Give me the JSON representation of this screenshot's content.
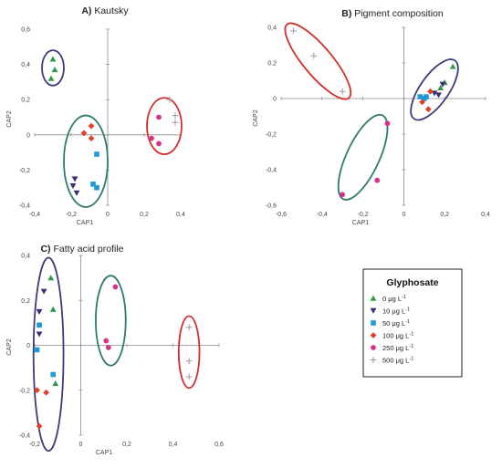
{
  "chart_data": [
    {
      "type": "scatter",
      "title": "A) Kautsky",
      "xlabel": "CAP1",
      "ylabel": "CAP2",
      "xlim": [
        -0.4,
        0.4
      ],
      "ylim": [
        -0.4,
        0.6
      ],
      "xticks": [
        "-0,4",
        "-0,2",
        "0",
        "0,2",
        "0,4"
      ],
      "yticks": [
        "-0,4",
        "-0,2",
        "0",
        "0,2",
        "0,4",
        "0,6"
      ],
      "series": [
        {
          "name": "0 μg L-1",
          "points": [
            [
              -0.3,
              0.43
            ],
            [
              -0.29,
              0.37
            ],
            [
              -0.31,
              0.32
            ]
          ]
        },
        {
          "name": "10 μg L-1",
          "points": [
            [
              -0.18,
              -0.25
            ],
            [
              -0.19,
              -0.29
            ],
            [
              -0.17,
              -0.33
            ]
          ]
        },
        {
          "name": "50 μg L-1",
          "points": [
            [
              -0.06,
              -0.11
            ],
            [
              -0.08,
              -0.28
            ],
            [
              -0.06,
              -0.3
            ]
          ]
        },
        {
          "name": "100 μg L-1",
          "points": [
            [
              -0.13,
              0.01
            ],
            [
              -0.09,
              0.05
            ],
            [
              -0.09,
              -0.02
            ]
          ]
        },
        {
          "name": "250 μg L-1",
          "points": [
            [
              0.28,
              0.1
            ],
            [
              0.24,
              -0.02
            ],
            [
              0.28,
              -0.05
            ]
          ]
        },
        {
          "name": "500 μg L-1",
          "points": [
            [
              0.34,
              0.2
            ],
            [
              0.37,
              0.11
            ],
            [
              0.37,
              0.07
            ]
          ]
        }
      ],
      "clusters": [
        {
          "cx": -0.3,
          "cy": 0.38,
          "rx": 0.06,
          "ry": 0.1,
          "angle": 0,
          "color": "#3b3b7a"
        },
        {
          "cx": -0.12,
          "cy": -0.15,
          "rx": 0.12,
          "ry": 0.26,
          "angle": 0,
          "color": "#2f7a6e"
        },
        {
          "cx": 0.31,
          "cy": 0.05,
          "rx": 0.095,
          "ry": 0.16,
          "angle": 0,
          "color": "#d0312d"
        }
      ]
    },
    {
      "type": "scatter",
      "title": "B) Pigment composition",
      "xlabel": "CAP1",
      "ylabel": "CAP2",
      "xlim": [
        -0.6,
        0.4
      ],
      "ylim": [
        -0.6,
        0.4
      ],
      "xticks": [
        "-0,6",
        "-0,4",
        "-0,2",
        "0",
        "0,2",
        "0,4"
      ],
      "yticks": [
        "-0,6",
        "-0,4",
        "-0,2",
        "0",
        "0,2",
        "0,4"
      ],
      "series": [
        {
          "name": "0 μg L-1",
          "points": [
            [
              0.24,
              0.18
            ],
            [
              0.2,
              0.09
            ],
            [
              0.18,
              0.06
            ]
          ]
        },
        {
          "name": "10 μg L-1",
          "points": [
            [
              0.19,
              0.08
            ],
            [
              0.15,
              0.03
            ],
            [
              0.17,
              0.02
            ]
          ]
        },
        {
          "name": "50 μg L-1",
          "points": [
            [
              0.08,
              0.01
            ],
            [
              0.11,
              0.01
            ],
            [
              0.1,
              0.0
            ]
          ]
        },
        {
          "name": "100 μg L-1",
          "points": [
            [
              0.13,
              0.04
            ],
            [
              0.09,
              -0.02
            ],
            [
              0.12,
              -0.06
            ]
          ]
        },
        {
          "name": "250 μg L-1",
          "points": [
            [
              -0.08,
              -0.14
            ],
            [
              -0.13,
              -0.46
            ],
            [
              -0.3,
              -0.54
            ]
          ]
        },
        {
          "name": "500 μg L-1",
          "points": [
            [
              -0.54,
              0.38
            ],
            [
              -0.44,
              0.24
            ],
            [
              -0.3,
              0.04
            ]
          ]
        }
      ],
      "clusters": [
        {
          "cx": 0.15,
          "cy": 0.05,
          "rx": 0.07,
          "ry": 0.2,
          "angle": 35,
          "color": "#3b3b7a"
        },
        {
          "cx": -0.2,
          "cy": -0.33,
          "rx": 0.08,
          "ry": 0.26,
          "angle": 25,
          "color": "#2f7a6e"
        },
        {
          "cx": -0.42,
          "cy": 0.21,
          "rx": 0.07,
          "ry": 0.27,
          "angle": -40,
          "color": "#d0312d"
        }
      ]
    },
    {
      "type": "scatter",
      "title": "C) Fatty acid profile",
      "xlabel": "CAP1",
      "ylabel": "CAP2",
      "xlim": [
        -0.2,
        0.6
      ],
      "ylim": [
        -0.4,
        0.4
      ],
      "xticks": [
        "-0,2",
        "0",
        "0,2",
        "0,4",
        "0,6"
      ],
      "yticks": [
        "-0,4",
        "-0,2",
        "0",
        "0,2",
        "0,4"
      ],
      "series": [
        {
          "name": "0 μg L-1",
          "points": [
            [
              -0.13,
              0.3
            ],
            [
              -0.12,
              0.16
            ],
            [
              -0.11,
              -0.17
            ]
          ]
        },
        {
          "name": "10 μg L-1",
          "points": [
            [
              -0.16,
              0.24
            ],
            [
              -0.18,
              0.15
            ],
            [
              -0.18,
              0.05
            ]
          ]
        },
        {
          "name": "50 μg L-1",
          "points": [
            [
              -0.18,
              0.09
            ],
            [
              -0.19,
              -0.02
            ],
            [
              -0.12,
              -0.13
            ]
          ]
        },
        {
          "name": "100 μg L-1",
          "points": [
            [
              -0.19,
              -0.2
            ],
            [
              -0.15,
              -0.21
            ],
            [
              -0.18,
              -0.36
            ]
          ]
        },
        {
          "name": "250 μg L-1",
          "points": [
            [
              0.15,
              0.26
            ],
            [
              0.11,
              0.02
            ],
            [
              0.12,
              -0.01
            ]
          ]
        },
        {
          "name": "500 μg L-1",
          "points": [
            [
              0.47,
              0.08
            ],
            [
              0.47,
              -0.07
            ],
            [
              0.47,
              -0.14
            ]
          ]
        }
      ],
      "clusters": [
        {
          "cx": -0.14,
          "cy": -0.04,
          "rx": 0.065,
          "ry": 0.43,
          "angle": 0,
          "color": "#3b3b7a"
        },
        {
          "cx": 0.13,
          "cy": 0.11,
          "rx": 0.065,
          "ry": 0.2,
          "angle": 0,
          "color": "#2f7a6e"
        },
        {
          "cx": 0.47,
          "cy": -0.03,
          "rx": 0.045,
          "ry": 0.16,
          "angle": 0,
          "color": "#d0312d"
        }
      ]
    }
  ],
  "legend": {
    "title": "Glyphosate",
    "unit": "μg L",
    "exponent": "-1",
    "entries": [
      {
        "value": "0",
        "marker": "triangle-up-icon",
        "color": "#2e9a4a"
      },
      {
        "value": "10",
        "marker": "triangle-down-icon",
        "color": "#3b2f7a"
      },
      {
        "value": "50",
        "marker": "square-icon",
        "color": "#1e9ad6"
      },
      {
        "value": "100",
        "marker": "diamond-icon",
        "color": "#e0402a"
      },
      {
        "value": "250",
        "marker": "circle-icon",
        "color": "#d6338a"
      },
      {
        "value": "500",
        "marker": "plus-icon",
        "color": "#9a9a9a"
      }
    ]
  }
}
